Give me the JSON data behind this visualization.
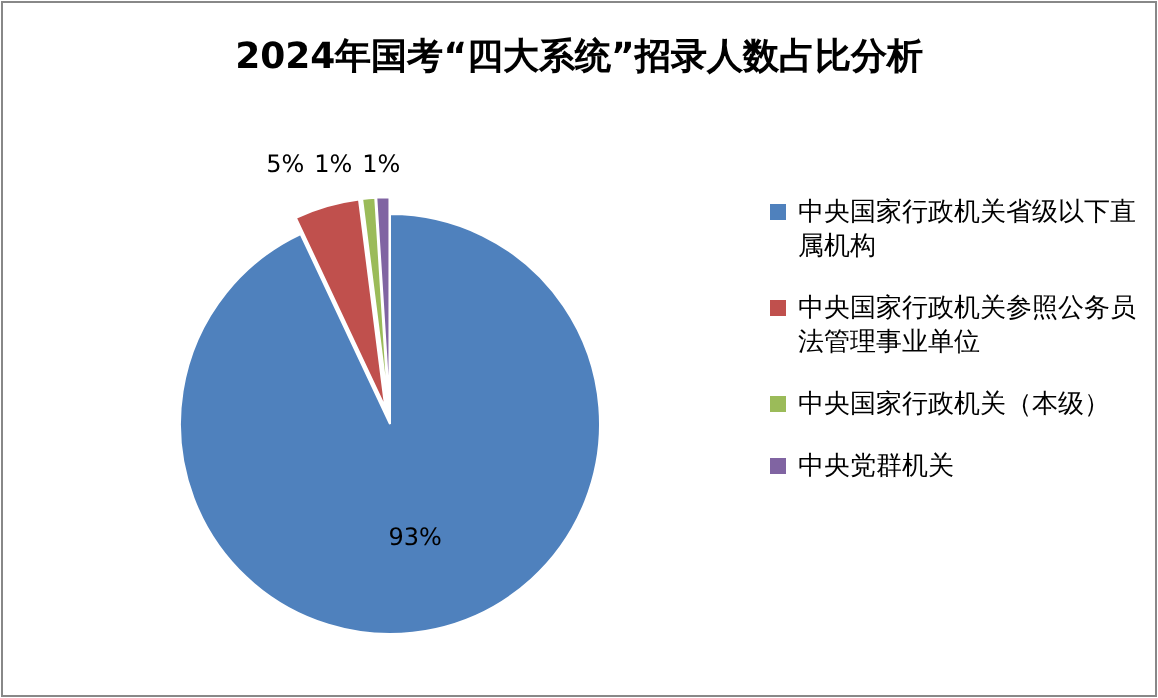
{
  "chart_data": {
    "type": "pie",
    "title": "2024年国考“四大系统”招录人数占比分析",
    "categories": [
      "中央国家行政机关省级以下直属机构",
      "中央国家行政机关参照公务员法管理事业单位",
      "中央国家行政机关（本级）",
      "中央党群机关"
    ],
    "values": [
      93,
      5,
      1,
      1
    ],
    "colors": [
      "#4f81bd",
      "#c0504d",
      "#9bbb59",
      "#8064a2"
    ],
    "value_labels": [
      "93%",
      "5%",
      "1%",
      "1%"
    ],
    "legend": "right"
  }
}
